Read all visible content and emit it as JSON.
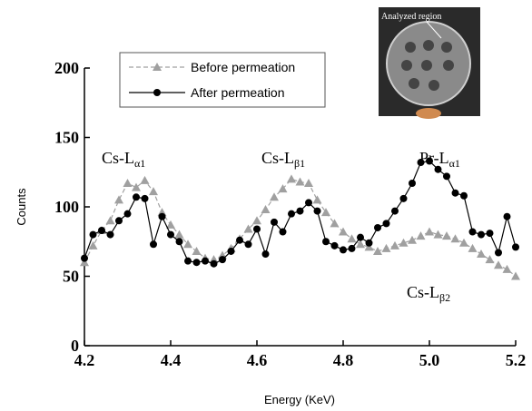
{
  "chart_data": {
    "type": "line",
    "xlabel": "Energy (KeV)",
    "ylabel": "Counts",
    "x": [
      4.2,
      4.22,
      4.24,
      4.26,
      4.28,
      4.3,
      4.32,
      4.34,
      4.36,
      4.38,
      4.4,
      4.42,
      4.44,
      4.46,
      4.48,
      4.5,
      4.52,
      4.54,
      4.56,
      4.58,
      4.6,
      4.62,
      4.64,
      4.66,
      4.68,
      4.7,
      4.72,
      4.74,
      4.76,
      4.78,
      4.8,
      4.82,
      4.84,
      4.86,
      4.88,
      4.9,
      4.92,
      4.94,
      4.96,
      4.98,
      5.0,
      5.02,
      5.04,
      5.06,
      5.08,
      5.1,
      5.12,
      5.14,
      5.16,
      5.18,
      5.2
    ],
    "series": [
      {
        "name": "Before permeation",
        "color": "#a0a0a0",
        "marker": "triangle",
        "dashed": true,
        "values": [
          60,
          72,
          83,
          90,
          105,
          117,
          114,
          119,
          111,
          96,
          87,
          80,
          73,
          68,
          63,
          62,
          65,
          70,
          77,
          84,
          90,
          98,
          107,
          113,
          120,
          118,
          117,
          105,
          96,
          88,
          82,
          77,
          73,
          71,
          68,
          70,
          72,
          74,
          76,
          79,
          82,
          80,
          79,
          77,
          74,
          70,
          66,
          62,
          58,
          55,
          50
        ]
      },
      {
        "name": "After permeation",
        "color": "#000000",
        "marker": "circle",
        "dashed": false,
        "values": [
          63,
          80,
          83,
          80,
          90,
          95,
          107,
          106,
          73,
          93,
          80,
          75,
          61,
          60,
          61,
          59,
          62,
          68,
          76,
          73,
          84,
          66,
          89,
          82,
          95,
          97,
          103,
          97,
          75,
          72,
          69,
          70,
          78,
          74,
          85,
          88,
          97,
          106,
          117,
          132,
          133,
          127,
          122,
          110,
          108,
          82,
          80,
          81,
          67,
          93,
          71
        ]
      }
    ],
    "xlim": [
      4.2,
      5.2
    ],
    "ylim": [
      0,
      200
    ],
    "xticks": [
      4.2,
      4.4,
      4.6,
      4.8,
      {
        "value": 5,
        "label": "5.0"
      },
      5.2
    ],
    "yticks": [
      0,
      50,
      100,
      150,
      200
    ],
    "annotations": [
      {
        "text": "Cs-L",
        "sub": "α1"
      },
      {
        "text": "Cs-L",
        "sub": "β1"
      },
      {
        "text": "Pr-L",
        "sub": "α1"
      },
      {
        "text": "Cs-L",
        "sub": "β2"
      }
    ],
    "inset_label": "Analyzed region",
    "legend": "upper left"
  }
}
